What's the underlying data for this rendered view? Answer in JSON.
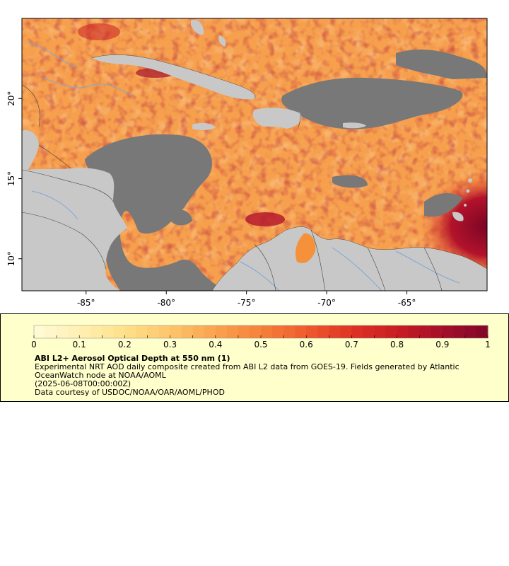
{
  "map": {
    "x_axis": {
      "ticks": [
        -85,
        -80,
        -75,
        -70,
        -65
      ],
      "labels": [
        "-85°",
        "-80°",
        "-75°",
        "-70°",
        "-65°"
      ]
    },
    "y_axis": {
      "ticks": [
        10,
        15,
        20
      ],
      "labels": [
        "10°",
        "15°",
        "20°"
      ]
    },
    "lon_range": [
      -89,
      -60
    ],
    "lat_range": [
      8,
      25
    ],
    "colors": {
      "land": "#c8c8c8",
      "ocean_nodata": "#787878",
      "aod_low": "#ffe08a",
      "aod_mid": "#f5913b",
      "aod_high": "#8b0a2a",
      "rivers": "#7fa6d6",
      "borders": "#000000"
    }
  },
  "colorbar": {
    "min": 0,
    "max": 1,
    "tick_values": [
      0,
      0.1,
      0.2,
      0.3,
      0.4,
      0.5,
      0.6,
      0.7,
      0.8,
      0.9,
      1
    ],
    "tick_labels": [
      "0",
      "0.1",
      "0.2",
      "0.3",
      "0.4",
      "0.5",
      "0.6",
      "0.7",
      "0.8",
      "0.9",
      "1"
    ],
    "palette": [
      "#fffbd9",
      "#fff0b2",
      "#ffe08a",
      "#fdc56b",
      "#f9a24e",
      "#f5813a",
      "#ef5a2e",
      "#de3424",
      "#c81d24",
      "#a50f2a",
      "#800727"
    ]
  },
  "legend": {
    "title": "ABI L2+ Aerosol Optical Depth at 550 nm (1)",
    "line1": "Experimental NRT AOD daily composite created from ABI L2 data from GOES-19. Fields generated by Atlantic OceanWatch node at NOAA/AOML",
    "line2": "(2025-06-08T00:00:00Z)",
    "line3": "Data courtesy of USDOC/NOAA/OAR/AOML/PHOD"
  }
}
